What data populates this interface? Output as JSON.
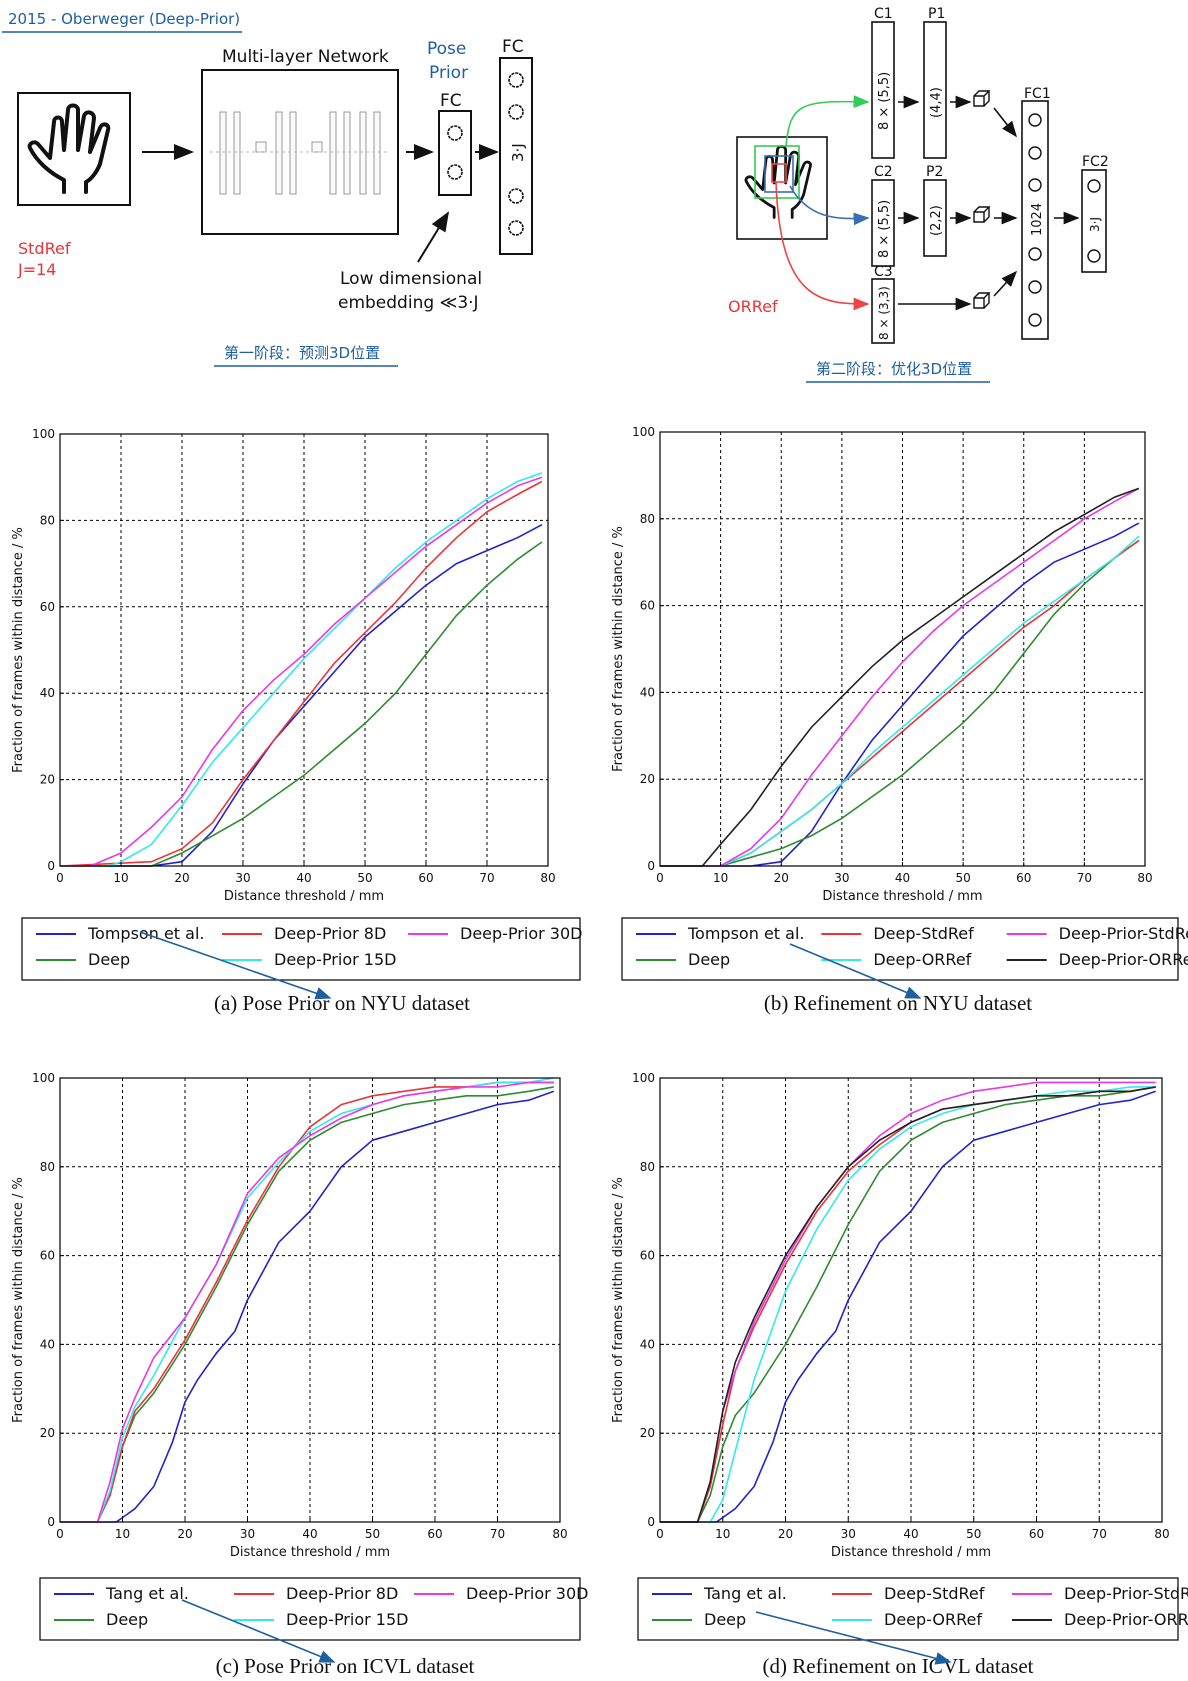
{
  "header": {
    "title": "2015 - Oberweger (Deep-Prior)",
    "stage1_caption": "第一阶段：预测3D位置",
    "stage2_caption": "第二阶段：优化3D位置"
  },
  "diagram1": {
    "network_label": "Multi-layer Network",
    "pose_prior_label_line1": "Pose",
    "pose_prior_label_line2": "Prior",
    "fc_small_label": "FC",
    "fc_large_label": "FC",
    "fc_large_inner": "3·J",
    "stdref_label": "StdRef",
    "j_label": "J=14",
    "embedding_line1": "Low dimensional",
    "embedding_line2": "embedding ≪3·J"
  },
  "diagram2": {
    "c1": "C1",
    "p1": "P1",
    "c2": "C2",
    "p2": "P2",
    "c3": "C3",
    "fc1": "FC1",
    "fc2": "FC2",
    "c1_inner": "8 × (5,5)",
    "p1_inner": "(4,4)",
    "c2_inner": "8 × (5,5)",
    "p2_inner": "(2,2)",
    "c3_inner": "8 × (3,3)",
    "fc1_inner": "1024",
    "fc2_inner": "3·J",
    "orref_label": "ORRef"
  },
  "colors": {
    "blue": "#2222cc",
    "green": "#2e8b2e",
    "red": "#e8353a",
    "cyan": "#33eaea",
    "magenta": "#e838e8",
    "black": "#222222",
    "title_blue": "#1f5fa0",
    "annot_red": "#e8353a"
  },
  "chart_data": [
    {
      "type": "line",
      "caption": "(a) Pose Prior on NYU dataset",
      "xlabel": "Distance threshold / mm",
      "ylabel": "Fraction of frames within distance / %",
      "xlim": [
        0,
        80
      ],
      "ylim": [
        0,
        100
      ],
      "xticks": [
        0,
        10,
        20,
        30,
        40,
        50,
        60,
        70,
        80
      ],
      "yticks": [
        0,
        20,
        40,
        60,
        80,
        100
      ],
      "grid": true,
      "legend": "below",
      "series": [
        {
          "name": "Tompson et al.",
          "color": "blue",
          "x": [
            0,
            15,
            20,
            25,
            30,
            35,
            40,
            45,
            50,
            55,
            60,
            65,
            70,
            75,
            79
          ],
          "y": [
            0,
            0,
            1,
            8,
            19,
            29,
            37,
            45,
            53,
            59,
            65,
            70,
            73,
            76,
            79
          ]
        },
        {
          "name": "Deep",
          "color": "green",
          "x": [
            0,
            15,
            20,
            25,
            30,
            35,
            40,
            45,
            50,
            55,
            60,
            65,
            70,
            75,
            79
          ],
          "y": [
            0,
            0,
            3,
            7,
            11,
            16,
            21,
            27,
            33,
            40,
            49,
            58,
            65,
            71,
            75
          ]
        },
        {
          "name": "Deep-Prior 8D",
          "color": "red",
          "x": [
            0,
            15,
            20,
            25,
            30,
            35,
            40,
            45,
            50,
            55,
            60,
            65,
            70,
            75,
            79
          ],
          "y": [
            0,
            1,
            4,
            10,
            20,
            29,
            38,
            47,
            54,
            61,
            69,
            76,
            82,
            86,
            89
          ]
        },
        {
          "name": "Deep-Prior 15D",
          "color": "cyan",
          "x": [
            0,
            8,
            10,
            15,
            20,
            25,
            30,
            35,
            40,
            45,
            50,
            55,
            60,
            65,
            70,
            75,
            79
          ],
          "y": [
            0,
            0,
            1,
            5,
            14,
            24,
            32,
            40,
            48,
            55,
            62,
            69,
            75,
            80,
            85,
            89,
            91
          ]
        },
        {
          "name": "Deep-Prior 30D",
          "color": "magenta",
          "x": [
            0,
            5,
            10,
            15,
            20,
            25,
            30,
            35,
            40,
            45,
            50,
            55,
            60,
            65,
            70,
            75,
            79
          ],
          "y": [
            0,
            0,
            3,
            9,
            16,
            27,
            36,
            43,
            49,
            56,
            62,
            68,
            74,
            79,
            84,
            88,
            90
          ]
        }
      ]
    },
    {
      "type": "line",
      "caption": "(b) Refinement on NYU dataset",
      "xlabel": "Distance threshold / mm",
      "ylabel": "Fraction of frames within distance / %",
      "xlim": [
        0,
        80
      ],
      "ylim": [
        0,
        100
      ],
      "xticks": [
        0,
        10,
        20,
        30,
        40,
        50,
        60,
        70,
        80
      ],
      "yticks": [
        0,
        20,
        40,
        60,
        80,
        100
      ],
      "grid": true,
      "legend": "below",
      "series": [
        {
          "name": "Tompson et al.",
          "color": "blue",
          "x": [
            0,
            15,
            20,
            25,
            30,
            35,
            40,
            45,
            50,
            55,
            60,
            65,
            70,
            75,
            79
          ],
          "y": [
            0,
            0,
            1,
            8,
            19,
            29,
            37,
            45,
            53,
            59,
            65,
            70,
            73,
            76,
            79
          ]
        },
        {
          "name": "Deep",
          "color": "green",
          "x": [
            0,
            10,
            15,
            20,
            25,
            30,
            35,
            40,
            45,
            50,
            55,
            60,
            65,
            70,
            75,
            79
          ],
          "y": [
            0,
            0,
            2,
            4,
            7,
            11,
            16,
            21,
            27,
            33,
            40,
            49,
            58,
            65,
            71,
            75
          ]
        },
        {
          "name": "Deep-StdRef",
          "color": "red",
          "x": [
            0,
            10,
            15,
            20,
            25,
            30,
            35,
            40,
            45,
            50,
            55,
            60,
            65,
            70,
            75,
            79
          ],
          "y": [
            0,
            0,
            3,
            8,
            13,
            19,
            25,
            31,
            37,
            43,
            49,
            55,
            60,
            66,
            71,
            75
          ]
        },
        {
          "name": "Deep-ORRef",
          "color": "cyan",
          "x": [
            0,
            10,
            15,
            20,
            25,
            30,
            35,
            40,
            45,
            50,
            55,
            60,
            65,
            70,
            75,
            79
          ],
          "y": [
            0,
            0,
            3,
            8,
            13,
            19,
            26,
            32,
            38,
            44,
            50,
            56,
            61,
            66,
            71,
            76
          ]
        },
        {
          "name": "Deep-Prior-StdRef",
          "color": "magenta",
          "x": [
            0,
            10,
            15,
            20,
            25,
            30,
            35,
            40,
            45,
            50,
            55,
            60,
            65,
            70,
            75,
            79
          ],
          "y": [
            0,
            0,
            4,
            11,
            21,
            30,
            39,
            47,
            54,
            60,
            65,
            70,
            75,
            80,
            84,
            87
          ]
        },
        {
          "name": "Deep-Prior-ORRef",
          "color": "black",
          "x": [
            0,
            7,
            10,
            15,
            20,
            25,
            30,
            35,
            40,
            45,
            50,
            55,
            60,
            65,
            70,
            75,
            79
          ],
          "y": [
            0,
            0,
            5,
            13,
            23,
            32,
            39,
            46,
            52,
            57,
            62,
            67,
            72,
            77,
            81,
            85,
            87
          ]
        }
      ]
    },
    {
      "type": "line",
      "caption": "(c) Pose Prior on ICVL dataset",
      "xlabel": "Distance threshold / mm",
      "ylabel": "Fraction of frames within distance / %",
      "xlim": [
        0,
        80
      ],
      "ylim": [
        0,
        100
      ],
      "xticks": [
        0,
        10,
        20,
        30,
        40,
        50,
        60,
        70,
        80
      ],
      "yticks": [
        0,
        20,
        40,
        60,
        80,
        100
      ],
      "grid": true,
      "legend": "below",
      "series": [
        {
          "name": "Tang et al.",
          "color": "blue",
          "x": [
            0,
            9,
            12,
            15,
            18,
            20,
            22,
            25,
            28,
            30,
            35,
            40,
            45,
            50,
            55,
            60,
            65,
            70,
            75,
            79
          ],
          "y": [
            0,
            0,
            3,
            8,
            18,
            27,
            32,
            38,
            43,
            50,
            63,
            70,
            80,
            86,
            88,
            90,
            92,
            94,
            95,
            97
          ]
        },
        {
          "name": "Deep",
          "color": "green",
          "x": [
            0,
            6,
            8,
            10,
            12,
            15,
            20,
            25,
            30,
            35,
            40,
            45,
            50,
            55,
            60,
            65,
            70,
            75,
            79
          ],
          "y": [
            0,
            0,
            6,
            17,
            24,
            29,
            40,
            53,
            67,
            79,
            86,
            90,
            92,
            94,
            95,
            96,
            96,
            97,
            98
          ]
        },
        {
          "name": "Deep-Prior 8D",
          "color": "red",
          "x": [
            0,
            6,
            8,
            10,
            12,
            15,
            20,
            25,
            30,
            35,
            40,
            45,
            50,
            55,
            60,
            65,
            70,
            75,
            79
          ],
          "y": [
            0,
            0,
            6,
            17,
            25,
            30,
            41,
            54,
            68,
            80,
            89,
            94,
            96,
            97,
            98,
            98,
            99,
            99,
            99
          ]
        },
        {
          "name": "Deep-Prior 15D",
          "color": "cyan",
          "x": [
            0,
            6,
            8,
            10,
            12,
            15,
            20,
            25,
            30,
            35,
            40,
            45,
            50,
            55,
            60,
            65,
            70,
            75,
            79
          ],
          "y": [
            0,
            0,
            7,
            19,
            26,
            33,
            46,
            58,
            73,
            81,
            88,
            92,
            94,
            96,
            97,
            98,
            99,
            99,
            100
          ]
        },
        {
          "name": "Deep-Prior 30D",
          "color": "magenta",
          "x": [
            0,
            6,
            8,
            10,
            12,
            15,
            20,
            25,
            30,
            35,
            40,
            45,
            50,
            55,
            60,
            65,
            70,
            75,
            79
          ],
          "y": [
            0,
            0,
            9,
            21,
            28,
            37,
            46,
            58,
            74,
            82,
            87,
            91,
            94,
            96,
            97,
            98,
            98,
            99,
            99
          ]
        }
      ]
    },
    {
      "type": "line",
      "caption": "(d) Refinement on ICVL dataset",
      "xlabel": "Distance threshold / mm",
      "ylabel": "Fraction of frames within distance / %",
      "xlim": [
        0,
        80
      ],
      "ylim": [
        0,
        100
      ],
      "xticks": [
        0,
        10,
        20,
        30,
        40,
        50,
        60,
        70,
        80
      ],
      "yticks": [
        0,
        20,
        40,
        60,
        80,
        100
      ],
      "grid": true,
      "legend": "below",
      "series": [
        {
          "name": "Tang et al.",
          "color": "blue",
          "x": [
            0,
            9,
            12,
            15,
            18,
            20,
            22,
            25,
            28,
            30,
            35,
            40,
            45,
            50,
            55,
            60,
            65,
            70,
            75,
            79
          ],
          "y": [
            0,
            0,
            3,
            8,
            18,
            27,
            32,
            38,
            43,
            50,
            63,
            70,
            80,
            86,
            88,
            90,
            92,
            94,
            95,
            97
          ]
        },
        {
          "name": "Deep",
          "color": "green",
          "x": [
            0,
            6,
            8,
            10,
            12,
            15,
            20,
            25,
            30,
            35,
            40,
            45,
            50,
            55,
            60,
            65,
            70,
            75,
            79
          ],
          "y": [
            0,
            0,
            6,
            17,
            24,
            29,
            40,
            53,
            67,
            79,
            86,
            90,
            92,
            94,
            95,
            96,
            96,
            97,
            98
          ]
        },
        {
          "name": "Deep-StdRef",
          "color": "red",
          "x": [
            0,
            6,
            8,
            10,
            12,
            15,
            20,
            25,
            30,
            35,
            40,
            45,
            50,
            55,
            60,
            65,
            70,
            75,
            79
          ],
          "y": [
            0,
            0,
            8,
            22,
            34,
            44,
            58,
            70,
            79,
            85,
            90,
            93,
            94,
            95,
            96,
            96,
            97,
            97,
            98
          ]
        },
        {
          "name": "Deep-ORRef",
          "color": "cyan",
          "x": [
            0,
            8,
            10,
            12,
            15,
            20,
            25,
            30,
            35,
            40,
            45,
            50,
            55,
            60,
            65,
            70,
            75,
            79
          ],
          "y": [
            0,
            0,
            5,
            16,
            32,
            52,
            66,
            77,
            84,
            89,
            92,
            94,
            95,
            96,
            97,
            97,
            98,
            98
          ]
        },
        {
          "name": "Deep-Prior-StdRef",
          "color": "magenta",
          "x": [
            0,
            6,
            8,
            10,
            12,
            15,
            20,
            25,
            30,
            35,
            40,
            45,
            50,
            55,
            60,
            65,
            70,
            75,
            79
          ],
          "y": [
            0,
            0,
            9,
            25,
            34,
            45,
            59,
            71,
            80,
            87,
            92,
            95,
            97,
            98,
            99,
            99,
            99,
            99,
            99
          ]
        },
        {
          "name": "Deep-Prior-ORRef",
          "color": "black",
          "x": [
            0,
            6,
            8,
            10,
            12,
            15,
            20,
            25,
            30,
            35,
            40,
            45,
            50,
            55,
            60,
            65,
            70,
            75,
            79
          ],
          "y": [
            0,
            0,
            9,
            25,
            36,
            46,
            60,
            71,
            80,
            86,
            90,
            93,
            94,
            95,
            96,
            96,
            97,
            97,
            98
          ]
        }
      ]
    }
  ]
}
